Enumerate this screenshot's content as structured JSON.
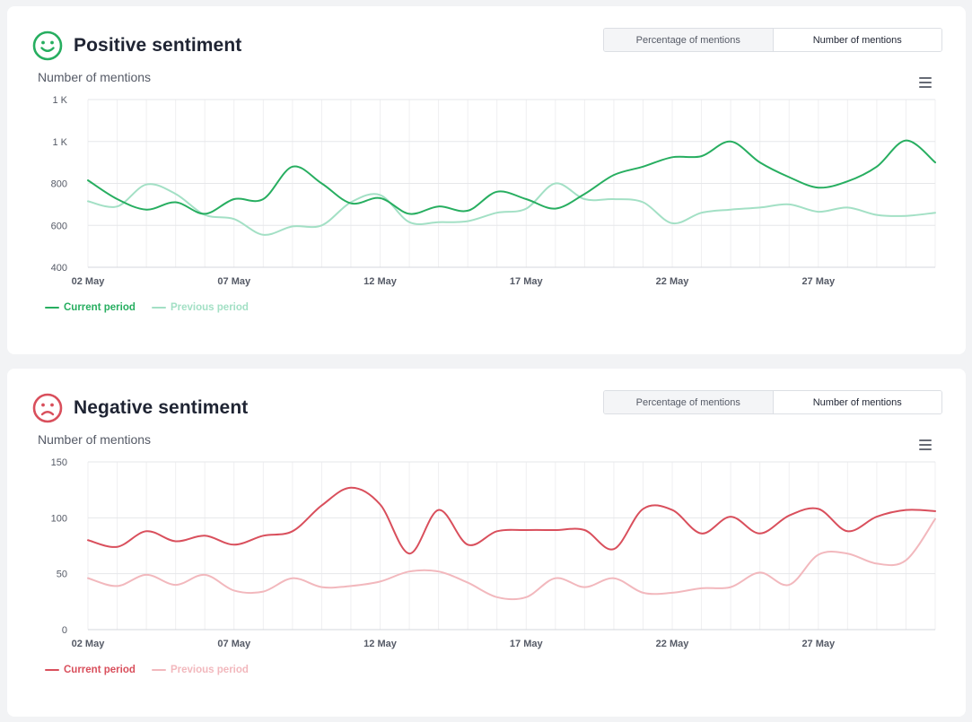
{
  "panels": [
    {
      "id": "positive",
      "title": "Positive sentiment",
      "face": "smile",
      "accent": "#27ae60",
      "accent_light": "#a3e0c5",
      "toggle": {
        "options": [
          "Percentage of mentions",
          "Number of mentions"
        ],
        "selected": "Number of mentions"
      },
      "y_axis_label": "Number of mentions",
      "legend": [
        "Current period",
        "Previous period"
      ]
    },
    {
      "id": "negative",
      "title": "Negative sentiment",
      "face": "sad",
      "accent": "#d94f5c",
      "accent_light": "#f2b8bd",
      "toggle": {
        "options": [
          "Percentage of mentions",
          "Number of mentions"
        ],
        "selected": "Number of mentions"
      },
      "y_axis_label": "Number of mentions",
      "legend": [
        "Current period",
        "Previous period"
      ]
    }
  ],
  "chart_data": [
    {
      "type": "line",
      "x": [
        "02 May",
        "03 May",
        "04 May",
        "05 May",
        "06 May",
        "07 May",
        "08 May",
        "09 May",
        "10 May",
        "11 May",
        "12 May",
        "13 May",
        "14 May",
        "15 May",
        "16 May",
        "17 May",
        "18 May",
        "19 May",
        "20 May",
        "21 May",
        "22 May",
        "23 May",
        "24 May",
        "25 May",
        "26 May",
        "27 May",
        "28 May",
        "29 May",
        "30 May",
        "31 May"
      ],
      "x_tick_labels": [
        "02 May",
        "07 May",
        "12 May",
        "17 May",
        "22 May",
        "27 May"
      ],
      "y_tick_labels": [
        "1 K",
        "1 K",
        "800",
        "600",
        "400"
      ],
      "y_ticks": [
        1200,
        1000,
        800,
        600,
        400
      ],
      "ylim": [
        400,
        1200
      ],
      "ylabel": "Number of mentions",
      "grid": true,
      "legend_position": "bottom-left",
      "series": [
        {
          "name": "Current period",
          "color": "#27ae60",
          "values": [
            815,
            725,
            675,
            710,
            655,
            725,
            725,
            880,
            800,
            705,
            730,
            655,
            690,
            670,
            760,
            725,
            680,
            750,
            840,
            880,
            925,
            930,
            1000,
            900,
            830,
            780,
            810,
            880,
            1005,
            900
          ]
        },
        {
          "name": "Previous period",
          "color": "#a3e0c5",
          "values": [
            715,
            690,
            795,
            750,
            650,
            630,
            555,
            595,
            600,
            710,
            745,
            615,
            615,
            620,
            660,
            680,
            800,
            725,
            725,
            710,
            610,
            660,
            675,
            685,
            700,
            665,
            685,
            650,
            645,
            660
          ]
        }
      ]
    },
    {
      "type": "line",
      "x": [
        "02 May",
        "03 May",
        "04 May",
        "05 May",
        "06 May",
        "07 May",
        "08 May",
        "09 May",
        "10 May",
        "11 May",
        "12 May",
        "13 May",
        "14 May",
        "15 May",
        "16 May",
        "17 May",
        "18 May",
        "19 May",
        "20 May",
        "21 May",
        "22 May",
        "23 May",
        "24 May",
        "25 May",
        "26 May",
        "27 May",
        "28 May",
        "29 May",
        "30 May",
        "31 May"
      ],
      "x_tick_labels": [
        "02 May",
        "07 May",
        "12 May",
        "17 May",
        "22 May",
        "27 May"
      ],
      "y_tick_labels": [
        "150",
        "100",
        "50",
        "0"
      ],
      "y_ticks": [
        150,
        100,
        50,
        0
      ],
      "ylim": [
        0,
        150
      ],
      "ylabel": "Number of mentions",
      "grid": true,
      "legend_position": "bottom-left",
      "series": [
        {
          "name": "Current period",
          "color": "#d94f5c",
          "values": [
            80,
            74,
            88,
            79,
            84,
            76,
            84,
            88,
            111,
            127,
            112,
            68,
            107,
            76,
            88,
            89,
            89,
            89,
            72,
            108,
            107,
            86,
            101,
            86,
            102,
            108,
            88,
            101,
            107,
            106
          ]
        },
        {
          "name": "Previous period",
          "color": "#f2b8bd",
          "values": [
            46,
            39,
            49,
            40,
            49,
            35,
            34,
            46,
            38,
            39,
            43,
            52,
            52,
            42,
            29,
            29,
            46,
            38,
            46,
            33,
            33,
            37,
            38,
            51,
            40,
            67,
            68,
            59,
            62,
            99
          ]
        }
      ]
    }
  ]
}
